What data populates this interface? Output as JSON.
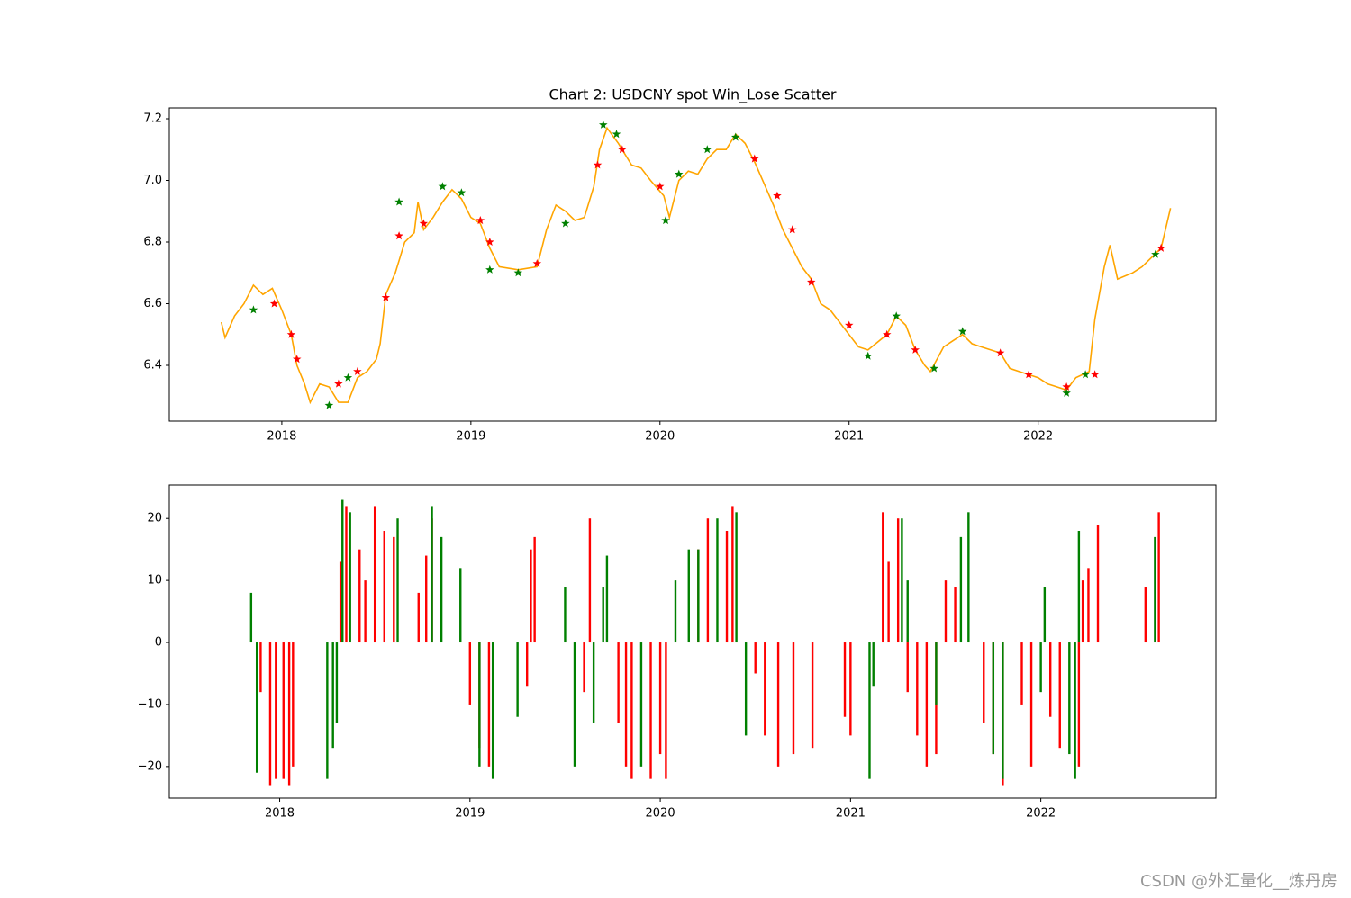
{
  "chart_data": [
    {
      "type": "line",
      "title": "Chart 2: USDCNY spot Win_Lose Scatter",
      "xlim": [
        2017.405,
        2022.94
      ],
      "xticks": [
        2018,
        2019,
        2020,
        2021,
        2022
      ],
      "ylim": [
        6.219,
        7.235
      ],
      "yticks": [
        6.4,
        6.6,
        6.8,
        {
          "value": 7,
          "label": "7.0"
        },
        7.2
      ],
      "series": [
        {
          "color": "orange",
          "x": [
            2017.68,
            2017.7,
            2017.75,
            2017.8,
            2017.85,
            2017.9,
            2017.95,
            2018.0,
            2018.05,
            2018.08,
            2018.12,
            2018.15,
            2018.2,
            2018.25,
            2018.3,
            2018.35,
            2018.4,
            2018.45,
            2018.5,
            2018.52,
            2018.55,
            2018.6,
            2018.65,
            2018.7,
            2018.72,
            2018.75,
            2018.8,
            2018.85,
            2018.9,
            2018.95,
            2019.0,
            2019.05,
            2019.1,
            2019.15,
            2019.25,
            2019.35,
            2019.4,
            2019.45,
            2019.5,
            2019.55,
            2019.6,
            2019.65,
            2019.68,
            2019.72,
            2019.78,
            2019.85,
            2019.9,
            2019.95,
            2020.02,
            2020.05,
            2020.1,
            2020.15,
            2020.2,
            2020.25,
            2020.3,
            2020.35,
            2020.4,
            2020.45,
            2020.5,
            2020.55,
            2020.6,
            2020.65,
            2020.7,
            2020.75,
            2020.8,
            2020.85,
            2020.9,
            2020.95,
            2021.0,
            2021.05,
            2021.1,
            2021.2,
            2021.25,
            2021.3,
            2021.35,
            2021.4,
            2021.43,
            2021.5,
            2021.55,
            2021.6,
            2021.65,
            2021.7,
            2021.8,
            2021.85,
            2021.9,
            2021.95,
            2022.0,
            2022.05,
            2022.1,
            2022.15,
            2022.2,
            2022.27,
            2022.3,
            2022.35,
            2022.38,
            2022.42,
            2022.5,
            2022.55,
            2022.6,
            2022.65,
            2022.7
          ],
          "values": [
            6.54,
            6.49,
            6.56,
            6.6,
            6.66,
            6.63,
            6.65,
            6.58,
            6.5,
            6.4,
            6.34,
            6.28,
            6.34,
            6.33,
            6.28,
            6.28,
            6.36,
            6.38,
            6.42,
            6.47,
            6.63,
            6.7,
            6.8,
            6.83,
            6.93,
            6.84,
            6.88,
            6.93,
            6.97,
            6.94,
            6.88,
            6.86,
            6.78,
            6.72,
            6.71,
            6.72,
            6.84,
            6.92,
            6.9,
            6.87,
            6.88,
            6.98,
            7.1,
            7.17,
            7.12,
            7.05,
            7.04,
            7.0,
            6.95,
            6.88,
            7.0,
            7.03,
            7.02,
            7.07,
            7.1,
            7.1,
            7.15,
            7.12,
            7.06,
            6.99,
            6.92,
            6.84,
            6.78,
            6.72,
            6.68,
            6.6,
            6.58,
            6.54,
            6.5,
            6.46,
            6.45,
            6.5,
            6.56,
            6.53,
            6.45,
            6.4,
            6.38,
            6.46,
            6.48,
            6.5,
            6.47,
            6.46,
            6.44,
            6.39,
            6.38,
            6.37,
            6.36,
            6.34,
            6.33,
            6.32,
            6.36,
            6.38,
            6.55,
            6.72,
            6.79,
            6.68,
            6.7,
            6.72,
            6.75,
            6.78,
            6.91
          ]
        },
        {
          "type": "scatter",
          "marker": "star",
          "color": "red",
          "x": [
            2017.96,
            2018.05,
            2018.08,
            2018.3,
            2018.4,
            2018.55,
            2018.62,
            2018.75,
            2019.05,
            2019.1,
            2019.35,
            2019.67,
            2019.8,
            2020.0,
            2020.5,
            2020.62,
            2020.7,
            2020.8,
            2021.0,
            2021.2,
            2021.35,
            2021.8,
            2021.95,
            2022.15,
            2022.3,
            2022.65
          ],
          "values": [
            6.6,
            6.5,
            6.42,
            6.34,
            6.38,
            6.62,
            6.82,
            6.86,
            6.87,
            6.8,
            6.73,
            7.05,
            7.1,
            6.98,
            7.07,
            6.95,
            6.84,
            6.67,
            6.53,
            6.5,
            6.45,
            6.44,
            6.37,
            6.33,
            6.37,
            6.78
          ]
        },
        {
          "type": "scatter",
          "marker": "star",
          "color": "green",
          "x": [
            2017.85,
            2018.25,
            2018.35,
            2018.62,
            2018.85,
            2018.95,
            2019.1,
            2019.25,
            2019.5,
            2019.7,
            2019.77,
            2020.03,
            2020.1,
            2020.25,
            2020.4,
            2021.1,
            2021.25,
            2021.45,
            2021.6,
            2022.15,
            2022.25,
            2022.62
          ],
          "values": [
            6.58,
            6.27,
            6.36,
            6.93,
            6.98,
            6.96,
            6.71,
            6.7,
            6.86,
            7.18,
            7.15,
            6.87,
            7.02,
            7.1,
            7.14,
            6.43,
            6.56,
            6.39,
            6.51,
            6.31,
            6.37,
            6.76
          ]
        }
      ]
    },
    {
      "type": "bar",
      "xlim": [
        2017.42,
        2022.92
      ],
      "xticks": [
        2018,
        2019,
        2020,
        2021,
        2022
      ],
      "ylim": [
        -25.1,
        25.4
      ],
      "yticks": [
        {
          "value": -20,
          "label": "−20"
        },
        {
          "value": -10,
          "label": "−10"
        },
        0,
        10,
        20
      ],
      "series": [
        {
          "color": "red",
          "x": [
            2017.9,
            2017.95,
            2017.98,
            2018.02,
            2018.05,
            2018.07,
            2018.32,
            2018.35,
            2018.42,
            2018.45,
            2018.5,
            2018.55,
            2018.6,
            2018.73,
            2018.77,
            2018.8,
            2019.0,
            2019.05,
            2019.1,
            2019.3,
            2019.32,
            2019.34,
            2019.6,
            2019.63,
            2019.78,
            2019.82,
            2019.85,
            2019.95,
            2020.0,
            2020.03,
            2020.2,
            2020.25,
            2020.35,
            2020.38,
            2020.5,
            2020.55,
            2020.62,
            2020.7,
            2020.8,
            2020.97,
            2021.0,
            2021.17,
            2021.2,
            2021.25,
            2021.3,
            2021.35,
            2021.4,
            2021.45,
            2021.5,
            2021.55,
            2021.7,
            2021.75,
            2021.8,
            2021.9,
            2021.95,
            2022.05,
            2022.1,
            2022.2,
            2022.22,
            2022.25,
            2022.3,
            2022.55,
            2022.62
          ],
          "values": [
            -8,
            -23,
            -22,
            -22,
            -23,
            -20,
            13,
            22,
            15,
            10,
            22,
            18,
            17,
            8,
            14,
            20,
            -10,
            -17,
            -20,
            -7,
            15,
            17,
            -8,
            20,
            -13,
            -20,
            -22,
            -22,
            -18,
            -22,
            15,
            20,
            18,
            22,
            -5,
            -15,
            -20,
            -18,
            -17,
            -12,
            -15,
            21,
            13,
            20,
            -8,
            -15,
            -20,
            -18,
            10,
            9,
            -13,
            -18,
            -23,
            -10,
            -20,
            -12,
            -17,
            -20,
            10,
            12,
            19,
            9,
            21
          ]
        },
        {
          "color": "green",
          "x": [
            2017.85,
            2017.88,
            2018.25,
            2018.28,
            2018.3,
            2018.33,
            2018.37,
            2018.62,
            2018.8,
            2018.85,
            2018.95,
            2019.05,
            2019.12,
            2019.25,
            2019.5,
            2019.55,
            2019.65,
            2019.7,
            2019.72,
            2019.9,
            2020.08,
            2020.15,
            2020.2,
            2020.3,
            2020.4,
            2020.45,
            2021.1,
            2021.12,
            2021.27,
            2021.3,
            2021.45,
            2021.58,
            2021.62,
            2021.75,
            2021.8,
            2022.0,
            2022.02,
            2022.15,
            2022.18,
            2022.2,
            2022.6
          ],
          "values": [
            8,
            -21,
            -22,
            -17,
            -13,
            23,
            21,
            20,
            22,
            17,
            12,
            -20,
            -22,
            -12,
            9,
            -20,
            -13,
            9,
            14,
            -20,
            10,
            15,
            15,
            20,
            21,
            -15,
            -22,
            -7,
            20,
            10,
            -10,
            17,
            21,
            -18,
            -22,
            -8,
            9,
            -18,
            -22,
            18,
            17
          ]
        }
      ]
    }
  ],
  "watermark": "CSDN @外汇量化__炼丹房"
}
